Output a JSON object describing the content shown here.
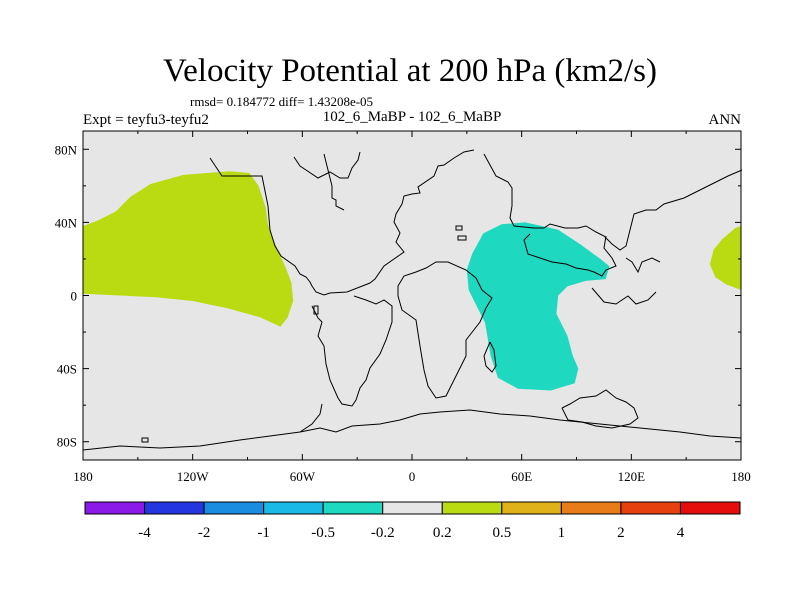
{
  "chart_data": {
    "type": "filled-contour-map",
    "title": "Velocity Potential at 200 hPa (km2/s)",
    "stats": "rmsd= 0.184772 diff= 1.43208e-05",
    "left_label": "Expt = teyfu3-teyfu2",
    "center_label": "102_6_MaBP - 102_6_MaBP",
    "right_label": "ANN",
    "x_ticks": [
      "180",
      "120W",
      "60W",
      "0",
      "60E",
      "120E",
      "180"
    ],
    "x_tick_values": [
      -180,
      -120,
      -60,
      0,
      60,
      120,
      180
    ],
    "y_ticks": [
      "80N",
      "40N",
      "0",
      "40S",
      "80S"
    ],
    "y_tick_values": [
      80,
      40,
      0,
      -40,
      -80
    ],
    "lon_range": [
      -180,
      180
    ],
    "lat_range": [
      -90,
      90
    ],
    "colorbar": {
      "colors": [
        "#8b19e8",
        "#2336e0",
        "#1a8de0",
        "#1bb9e6",
        "#1ed8c0",
        "#e6e6e6",
        "#bada12",
        "#e0b21a",
        "#e87c18",
        "#e6400e",
        "#e60d0d"
      ],
      "labels": [
        "-4",
        "-2",
        "-1",
        "-0.5",
        "-0.2",
        "0.2",
        "0.5",
        "1",
        "2",
        "4"
      ]
    },
    "regions": [
      {
        "name": "positive-anomaly-pacific",
        "level": "0.2 to 0.5",
        "color": "#bada12",
        "points": [
          [
            -180,
            38
          ],
          [
            -172,
            41
          ],
          [
            -162,
            46
          ],
          [
            -154,
            54
          ],
          [
            -143,
            61
          ],
          [
            -125,
            66
          ],
          [
            -100,
            68
          ],
          [
            -89,
            67
          ],
          [
            -84,
            60
          ],
          [
            -80,
            48
          ],
          [
            -79,
            40
          ],
          [
            -77,
            33
          ],
          [
            -73,
            24
          ],
          [
            -69,
            15
          ],
          [
            -66,
            7
          ],
          [
            -65,
            -3
          ],
          [
            -68,
            -12
          ],
          [
            -72,
            -17
          ],
          [
            -83,
            -12
          ],
          [
            -101,
            -7
          ],
          [
            -120,
            -3
          ],
          [
            -140,
            -1
          ],
          [
            -160,
            0
          ],
          [
            -180,
            1
          ]
        ]
      },
      {
        "name": "negative-anomaly-africa-indian",
        "level": "-0.5 to -0.2",
        "color": "#1ed8c0",
        "points": [
          [
            33,
            23
          ],
          [
            39,
            34
          ],
          [
            49,
            39
          ],
          [
            62,
            40
          ],
          [
            80,
            36
          ],
          [
            92,
            28
          ],
          [
            103,
            20
          ],
          [
            108,
            16
          ],
          [
            106,
            9
          ],
          [
            95,
            8
          ],
          [
            85,
            5
          ],
          [
            80,
            0
          ],
          [
            79,
            -10
          ],
          [
            85,
            -22
          ],
          [
            88,
            -33
          ],
          [
            91,
            -40
          ],
          [
            89,
            -48
          ],
          [
            76,
            -52
          ],
          [
            58,
            -51
          ],
          [
            47,
            -45
          ],
          [
            43,
            -33
          ],
          [
            40,
            -15
          ],
          [
            34,
            -3
          ],
          [
            31,
            3
          ],
          [
            30,
            14
          ]
        ]
      },
      {
        "name": "positive-anomaly-east-edge",
        "level": "0.2 to 0.5",
        "color": "#bada12",
        "points": [
          [
            180,
            38
          ],
          [
            177,
            37
          ],
          [
            170,
            31
          ],
          [
            165,
            25
          ],
          [
            163,
            17
          ],
          [
            166,
            10
          ],
          [
            172,
            6
          ],
          [
            180,
            3
          ]
        ]
      }
    ]
  }
}
